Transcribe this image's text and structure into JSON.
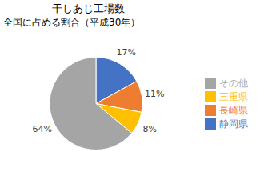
{
  "chart_data": {
    "type": "pie",
    "title": "干しあじ工場数",
    "subtitle": "全国に占める割合（平成30年）",
    "categories": [
      "静岡県",
      "長崎県",
      "三重県",
      "その他"
    ],
    "values": [
      17,
      11,
      8,
      64
    ],
    "value_labels": [
      "17%",
      "11%",
      "8%",
      "64%"
    ],
    "colors": [
      "#4472C4",
      "#ED7D31",
      "#FFC000",
      "#A5A5A5"
    ],
    "data_labels": true,
    "legend": "right"
  }
}
